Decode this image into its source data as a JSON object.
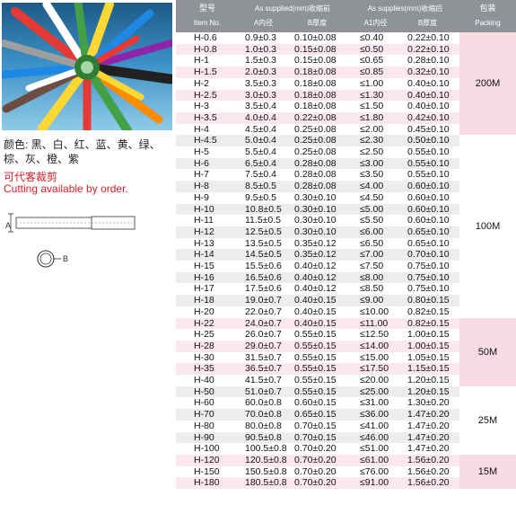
{
  "colors_text": "颜色: 黑、白、红、蓝、黄、绿、棕、灰、橙、紫",
  "cutting_cn": "可代客裁剪",
  "cutting_en": "Cutting available by order.",
  "drawing_labels": {
    "a": "A",
    "b": "B"
  },
  "header": {
    "model_cn": "型号",
    "model_en": "Item No.",
    "supplied_cn": "As supplied(mm)收缩前",
    "a_cn": "A内径",
    "b_cn": "B厚度",
    "shrunk_cn": "As supplies(mm)收缩后",
    "a1_cn": "A1内径",
    "b1_cn": "B厚度",
    "packing_cn": "包装",
    "packing_en": "Packing"
  },
  "rows": [
    [
      "H-0.6",
      "0.9±0.3",
      "0.10±0.08",
      "≤0.40",
      "0.22±0.10"
    ],
    [
      "H-0.8",
      "1.0±0.3",
      "0.15±0.08",
      "≤0.50",
      "0.22±0.10"
    ],
    [
      "H-1",
      "1.5±0.3",
      "0.15±0.08",
      "≤0.65",
      "0.28±0.10"
    ],
    [
      "H-1.5",
      "2.0±0.3",
      "0.18±0.08",
      "≤0.85",
      "0.32±0.10"
    ],
    [
      "H-2",
      "3.5±0.3",
      "0.18±0.08",
      "≤1.00",
      "0.40±0.10"
    ],
    [
      "H-2.5",
      "3.0±0.3",
      "0.18±0.08",
      "≤1.30",
      "0.40±0.10"
    ],
    [
      "H-3",
      "3.5±0.4",
      "0.18±0.08",
      "≤1.50",
      "0.40±0.10"
    ],
    [
      "H-3.5",
      "4.0±0.4",
      "0.22±0.08",
      "≤1.80",
      "0.42±0.10"
    ],
    [
      "H-4",
      "4.5±0.4",
      "0.25±0.08",
      "≤2.00",
      "0.45±0.10"
    ],
    [
      "H-4.5",
      "5.0±0.4",
      "0.25±0.08",
      "≤2.30",
      "0.50±0.10"
    ],
    [
      "H-5",
      "5.5±0.4",
      "0.25±0.08",
      "≤2.50",
      "0.55±0.10"
    ],
    [
      "H-6",
      "6.5±0.4",
      "0.28±0.08",
      "≤3.00",
      "0.55±0.10"
    ],
    [
      "H-7",
      "7.5±0.4",
      "0.28±0.08",
      "≤3.50",
      "0.55±0.10"
    ],
    [
      "H-8",
      "8.5±0.5",
      "0.28±0.08",
      "≤4.00",
      "0.60±0.10"
    ],
    [
      "H-9",
      "9.5±0.5",
      "0.30±0.10",
      "≤4.50",
      "0.60±0.10"
    ],
    [
      "H-10",
      "10.8±0.5",
      "0.30±0.10",
      "≤5.00",
      "0.60±0.10"
    ],
    [
      "H-11",
      "11.5±0.5",
      "0.30±0.10",
      "≤5.50",
      "0.60±0.10"
    ],
    [
      "H-12",
      "12.5±0.5",
      "0.30±0.10",
      "≤6.00",
      "0.65±0.10"
    ],
    [
      "H-13",
      "13.5±0.5",
      "0.35±0.12",
      "≤6.50",
      "0.65±0.10"
    ],
    [
      "H-14",
      "14.5±0.5",
      "0.35±0.12",
      "≤7.00",
      "0.70±0.10"
    ],
    [
      "H-15",
      "15.5±0.6",
      "0.40±0.12",
      "≤7.50",
      "0.75±0.10"
    ],
    [
      "H-16",
      "16.5±0.6",
      "0.40±0.12",
      "≤8.00",
      "0.75±0.10"
    ],
    [
      "H-17",
      "17.5±0.6",
      "0.40±0.12",
      "≤8.50",
      "0.75±0.10"
    ],
    [
      "H-18",
      "19.0±0.7",
      "0.40±0.15",
      "≤9.00",
      "0.80±0.15"
    ],
    [
      "H-20",
      "22.0±0.7",
      "0.40±0.15",
      "≤10.00",
      "0.82±0.15"
    ],
    [
      "H-22",
      "24.0±0.7",
      "0.40±0.15",
      "≤11.00",
      "0.82±0.15"
    ],
    [
      "H-25",
      "26.0±0.7",
      "0.55±0.15",
      "≤12.50",
      "1.00±0.15"
    ],
    [
      "H-28",
      "29.0±0.7",
      "0.55±0.15",
      "≤14.00",
      "1.00±0.15"
    ],
    [
      "H-30",
      "31.5±0.7",
      "0.55±0.15",
      "≤15.00",
      "1.05±0.15"
    ],
    [
      "H-35",
      "36.5±0.7",
      "0.55±0.15",
      "≤17.50",
      "1.15±0.15"
    ],
    [
      "H-40",
      "41.5±0.7",
      "0.55±0.15",
      "≤20.00",
      "1.20±0.15"
    ],
    [
      "H-50",
      "51.0±0.7",
      "0.55±0.15",
      "≤25.00",
      "1.20±0.15"
    ],
    [
      "H-60",
      "60.0±0.8",
      "0.60±0.15",
      "≤31.00",
      "1.30±0.20"
    ],
    [
      "H-70",
      "70.0±0.8",
      "0.65±0.15",
      "≤36.00",
      "1.47±0.20"
    ],
    [
      "H-80",
      "80.0±0.8",
      "0.70±0.15",
      "≤41.00",
      "1.47±0.20"
    ],
    [
      "H-90",
      "90.5±0.8",
      "0.70±0.15",
      "≤46.00",
      "1.47±0.20"
    ],
    [
      "H-100",
      "100.5±0.8",
      "0.70±0.20",
      "≤51.00",
      "1.47±0.20"
    ],
    [
      "H-120",
      "120.5±0.8",
      "0.70±0.20",
      "≤61.00",
      "1.56±0.20"
    ],
    [
      "H-150",
      "150.5±0.8",
      "0.70±0.20",
      "≤76.00",
      "1.56±0.20"
    ],
    [
      "H-180",
      "180.5±0.8",
      "0.70±0.20",
      "≤91.00",
      "1.56±0.20"
    ]
  ],
  "packing_groups": [
    {
      "label": "200M",
      "from": 0,
      "to": 8,
      "color": "#f9dbe4"
    },
    {
      "label": "100M",
      "from": 9,
      "to": 24,
      "color": "#ffffff"
    },
    {
      "label": "50M",
      "from": 25,
      "to": 30,
      "color": "#f9dbe4"
    },
    {
      "label": "25M",
      "from": 31,
      "to": 36,
      "color": "#ffffff"
    },
    {
      "label": "15M",
      "from": 37,
      "to": 39,
      "color": "#f9dbe4"
    }
  ],
  "row_colors": {
    "odd": "#ffffff",
    "even": "#ededed",
    "pink": "#fbe7ee"
  }
}
